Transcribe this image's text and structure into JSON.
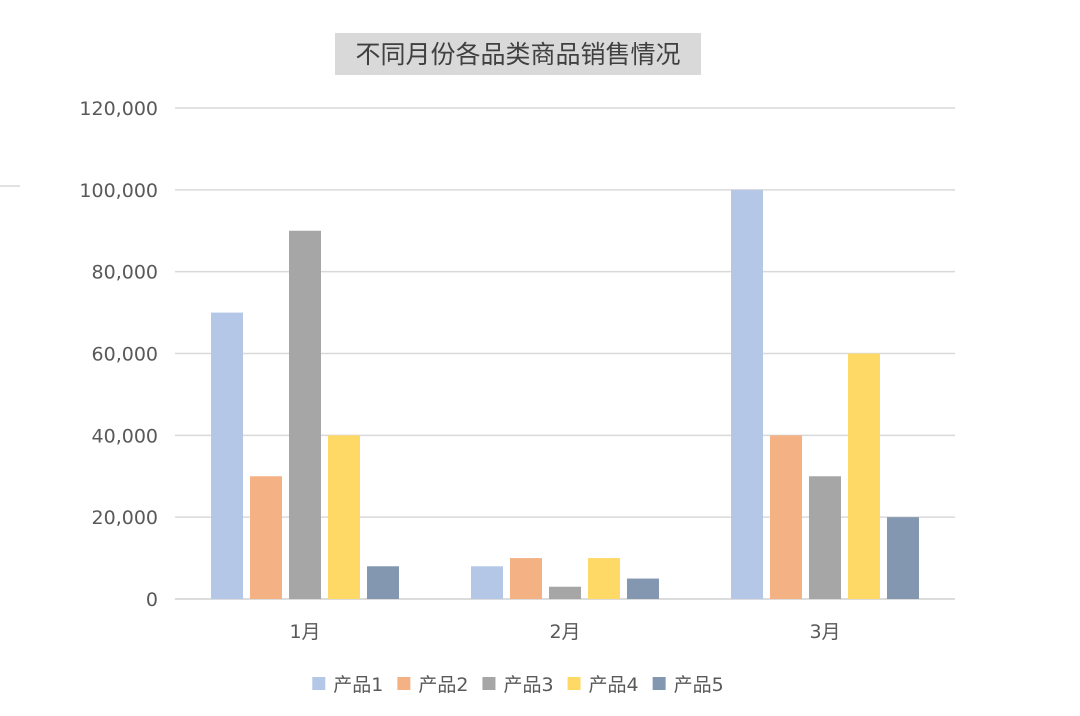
{
  "chart_data": {
    "type": "bar",
    "title": "不同月份各品类商品销售情况",
    "categories": [
      "1月",
      "2月",
      "3月"
    ],
    "series": [
      {
        "name": "产品1",
        "color": "#b4c7e7",
        "values": [
          70000,
          8000,
          100000
        ]
      },
      {
        "name": "产品2",
        "color": "#f4b183",
        "values": [
          30000,
          10000,
          40000
        ]
      },
      {
        "name": "产品3",
        "color": "#a6a6a6",
        "values": [
          90000,
          3000,
          30000
        ]
      },
      {
        "name": "产品4",
        "color": "#ffd966",
        "values": [
          40000,
          10000,
          60000
        ]
      },
      {
        "name": "产品5",
        "color": "#8497b0",
        "values": [
          8000,
          5000,
          20000
        ]
      }
    ],
    "yticks": [
      "0",
      "20,000",
      "40,000",
      "60,000",
      "80,000",
      "100,000",
      "120,000"
    ],
    "ylim": [
      0,
      120000
    ],
    "grid": true,
    "legend": "bottom"
  }
}
